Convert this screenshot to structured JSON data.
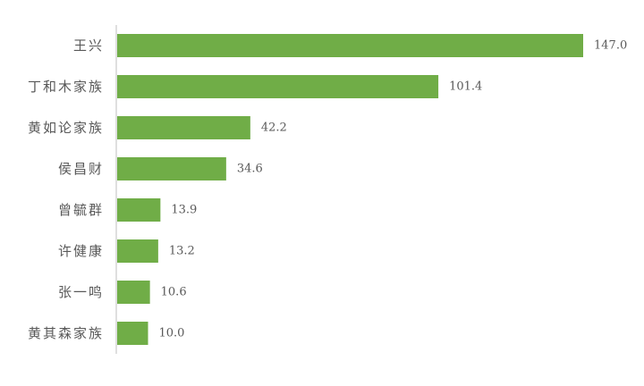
{
  "chart_data": {
    "type": "bar",
    "orientation": "horizontal",
    "categories": [
      "王兴",
      "丁和木家族",
      "黄如论家族",
      "侯昌财",
      "曾毓群",
      "许健康",
      "张一鸣",
      "黄其森家族"
    ],
    "values": [
      147.0,
      101.4,
      42.2,
      34.6,
      13.9,
      13.2,
      10.6,
      10.0
    ],
    "value_labels": [
      "147.0",
      "101.4",
      "42.2",
      "34.6",
      "13.9",
      "13.2",
      "10.6",
      "10.0"
    ],
    "bar_color": "#70ad47",
    "axis_color": "#bfbfbf",
    "text_color": "#595959",
    "xlim": [
      0,
      150
    ],
    "grid": false,
    "legend": "none",
    "title": "",
    "xlabel": "",
    "ylabel": ""
  }
}
